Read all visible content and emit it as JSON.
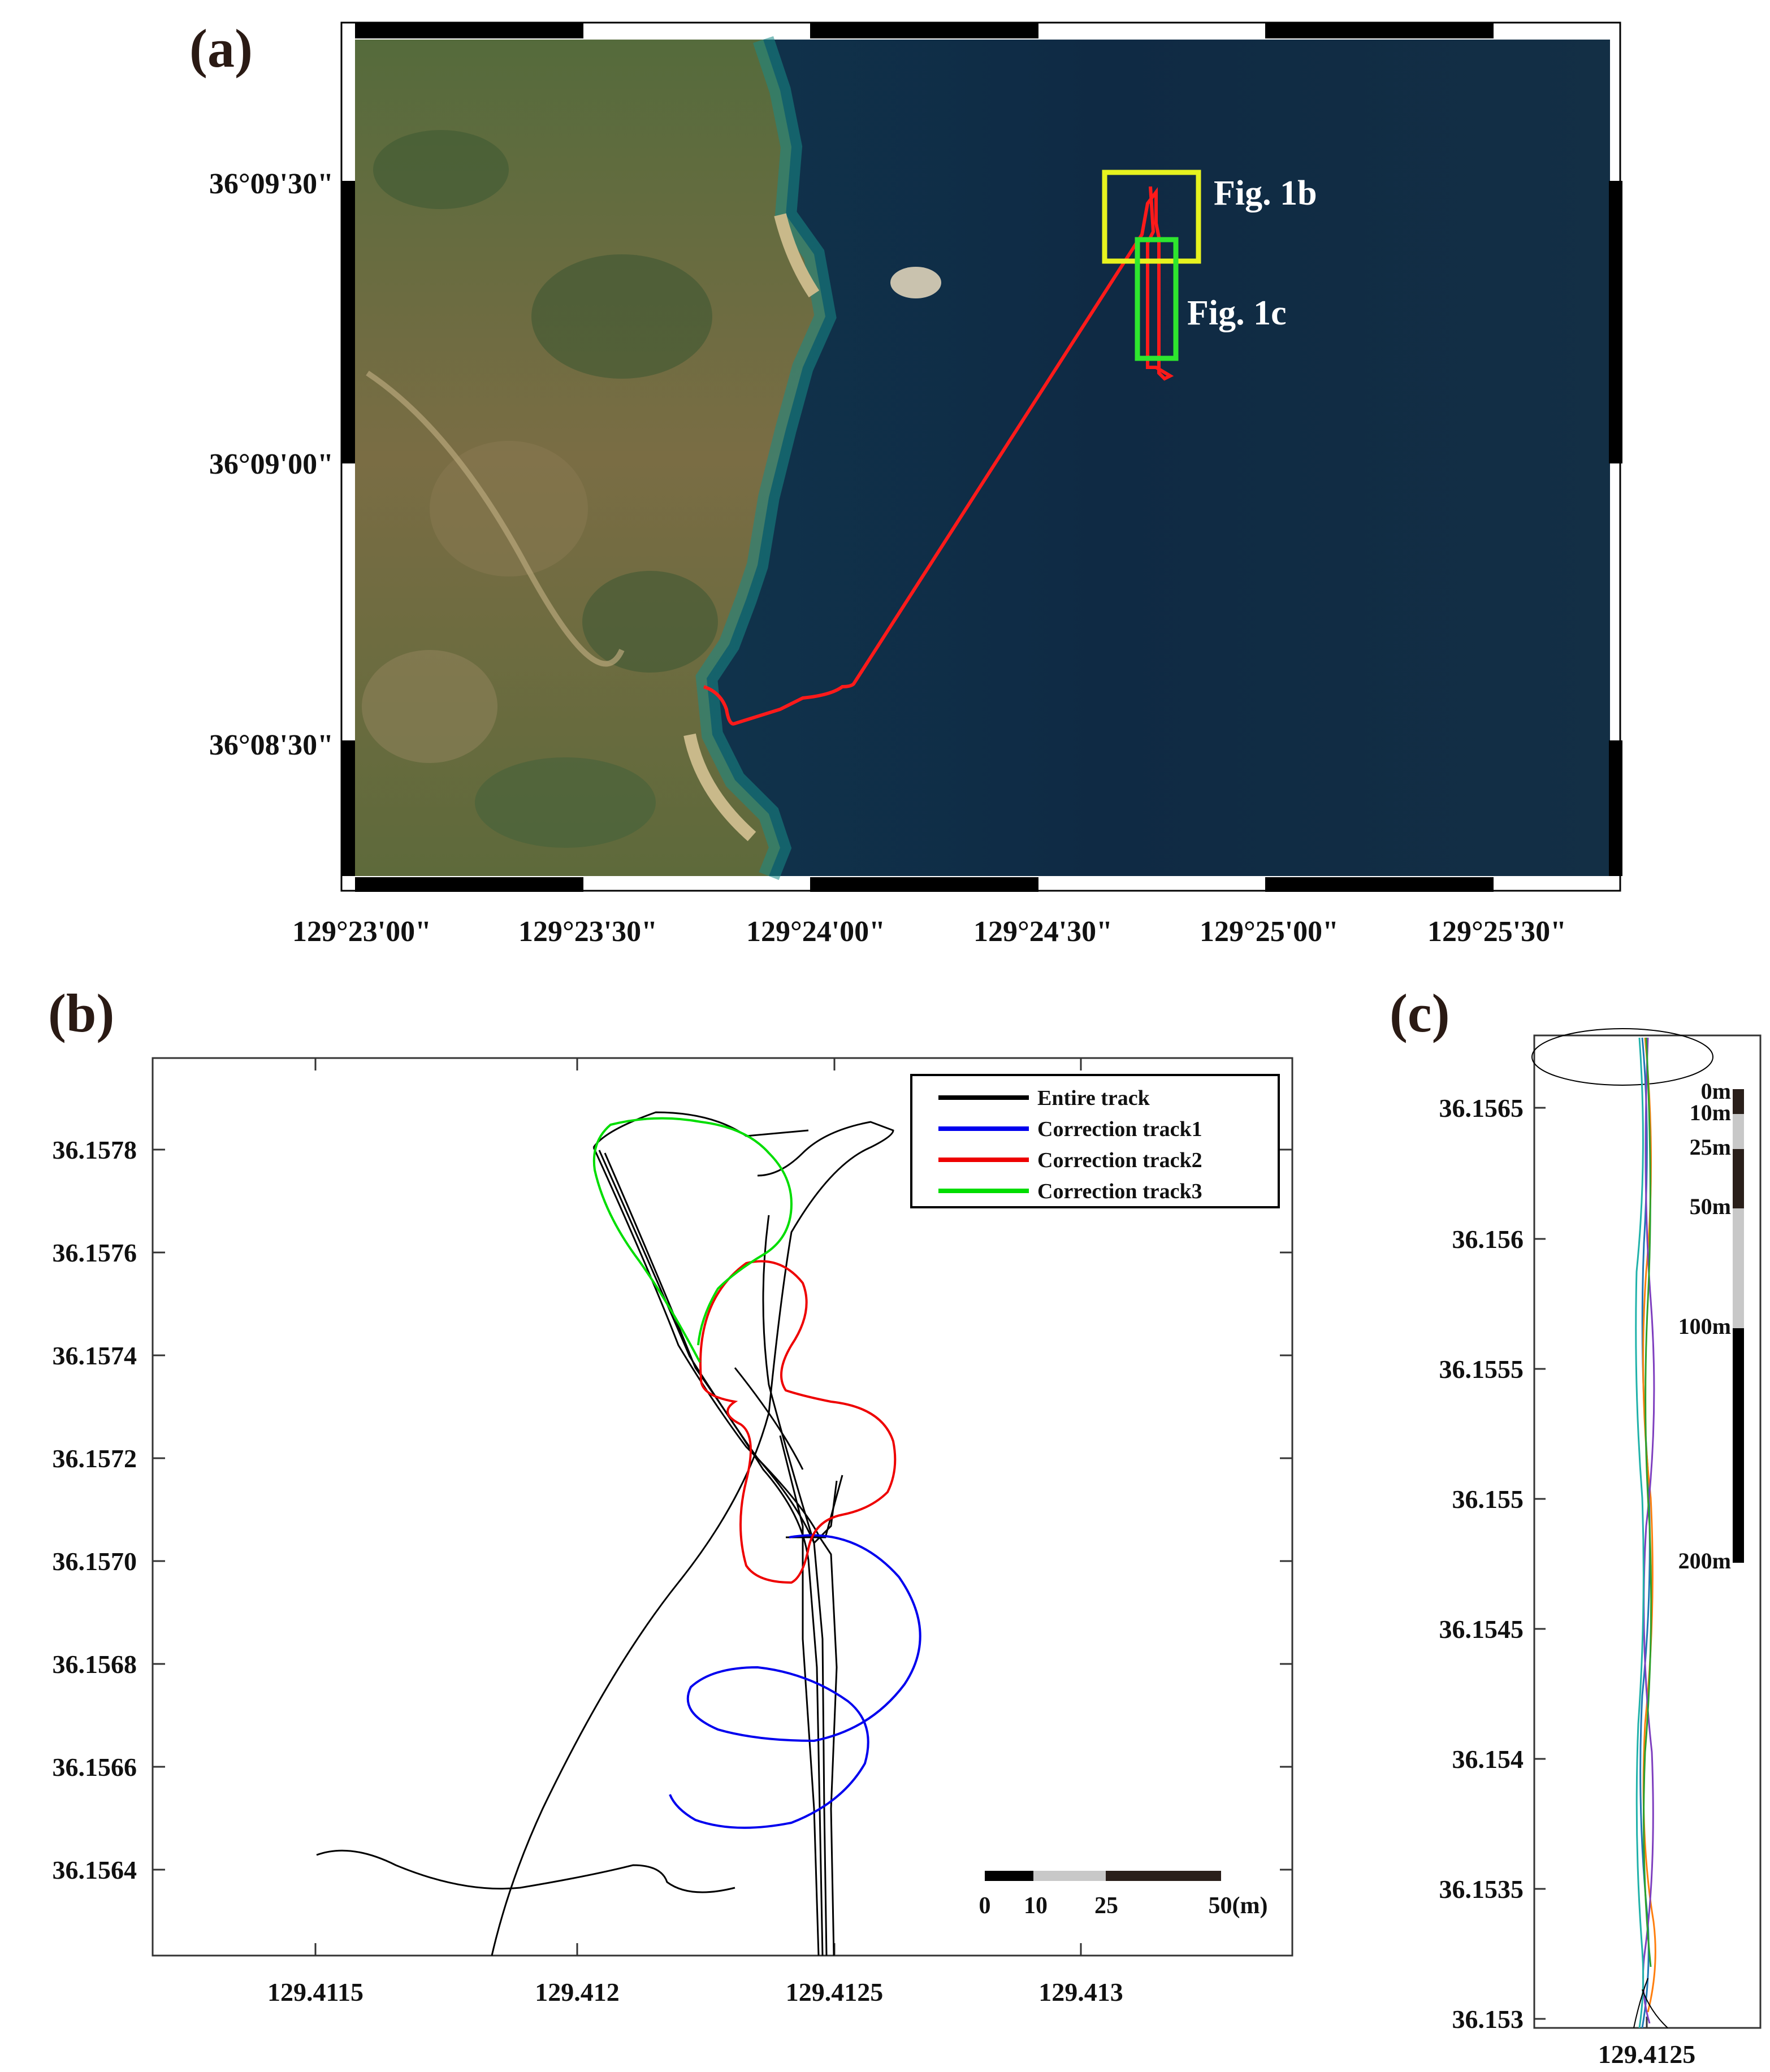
{
  "panels": {
    "a": {
      "label": "(a)",
      "lat_ticks": [
        "36°09'30\"",
        "36°09'00\"",
        "36°08'30\""
      ],
      "lon_ticks": [
        "129°23'00\"",
        "129°23'30\"",
        "129°24'00\"",
        "129°24'30\"",
        "129°25'00\"",
        "129°25'30\""
      ],
      "annotations": {
        "fig1b": "Fig. 1b",
        "fig1c": "Fig. 1c"
      },
      "colors": {
        "sea": "#0f2a44",
        "land": "#6b6a3e",
        "track": "#ff1a1a",
        "box_1b": "#e6f21f",
        "box_1c": "#2ee62e"
      }
    },
    "b": {
      "label": "(b)",
      "y_ticks": [
        "36.1578",
        "36.1576",
        "36.1574",
        "36.1572",
        "36.1570",
        "36.1568",
        "36.1566",
        "36.1564"
      ],
      "x_ticks": [
        "129.4115",
        "129.412",
        "129.4125",
        "129.413"
      ],
      "legend": [
        {
          "name": "Entire track",
          "color": "#000000"
        },
        {
          "name": "Correction track1",
          "color": "#0000ee"
        },
        {
          "name": "Correction track2",
          "color": "#ee0000"
        },
        {
          "name": "Correction track3",
          "color": "#00dd00"
        }
      ],
      "scalebar": {
        "labels": [
          "0",
          "10",
          "25",
          "50(m)"
        ]
      }
    },
    "c": {
      "label": "(c)",
      "y_ticks": [
        "36.1565",
        "36.156",
        "36.1555",
        "36.155",
        "36.1545",
        "36.154",
        "36.1535",
        "36.153"
      ],
      "x_ticks": [
        "129.4125"
      ],
      "scalebar": {
        "labels": [
          "0m",
          "10m",
          "25m",
          "50m",
          "100m",
          "200m"
        ]
      }
    }
  },
  "chart_data": [
    {
      "type": "scatter",
      "panel": "b",
      "xlabel": "",
      "ylabel": "",
      "xlim": [
        129.4112,
        129.4134
      ],
      "ylim": [
        36.15623,
        36.15797
      ],
      "series": [
        {
          "name": "Entire track",
          "color": "#000000"
        },
        {
          "name": "Correction track1",
          "color": "#0000ee"
        },
        {
          "name": "Correction track2",
          "color": "#ee0000"
        },
        {
          "name": "Correction track3",
          "color": "#00dd00"
        }
      ]
    },
    {
      "type": "line",
      "panel": "c",
      "xlim": [
        129.4122,
        129.4128
      ],
      "ylim": [
        36.15295,
        36.15675
      ]
    }
  ]
}
